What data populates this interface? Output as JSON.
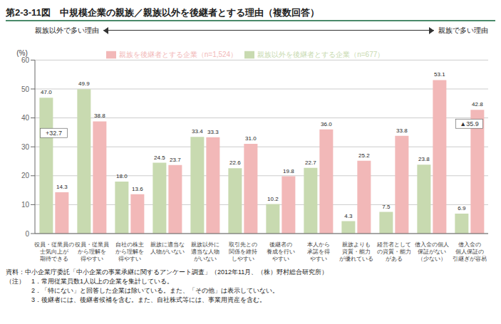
{
  "chart_data": {
    "type": "bar",
    "title": "第2-3-11図　中規模企業の親族／親族以外を後継者とする理由（複数回答）",
    "ylabel": "(%)",
    "categories": [
      "役員・従業員の\n士気向上が\n期待できる",
      "役員・従業員\nから理解を\n得やすい",
      "自社の株主\nから理解を\n得やすい",
      "親族に適当な\n人物がいない",
      "親族以外に\n適当な人物\nがいない",
      "取引先との\n関係を維持\nしやすい",
      "後継者の\n養成を行い\nやすい",
      "本人から\n承諾を得\nやすい",
      "親族よりも\n資質・能力\nが優れている",
      "経営者として\nの資質・能力\nがある",
      "借入金の個人\n保証がない\n（少ない）",
      "借入金の\n個人保証の\n引継ぎが容易"
    ],
    "series": [
      {
        "name": "親族以外を後継者とする企業（n=677）",
        "color": "#c8dab0",
        "values": [
          47.0,
          49.9,
          18.0,
          24.5,
          33.4,
          22.6,
          10.2,
          22.7,
          4.3,
          7.5,
          23.8,
          6.9
        ],
        "value_labels": [
          "47.0",
          "49.9",
          "18.0",
          "24.5",
          "33.4",
          "22.6",
          "10.2",
          "22.7",
          "4.3",
          "7.5",
          "23.8",
          "6.9"
        ]
      },
      {
        "name": "親族を後継者とする企業（n=1,524）",
        "color": "#f2b8b8",
        "values": [
          14.3,
          38.8,
          13.6,
          23.7,
          33.3,
          31.0,
          19.8,
          36.0,
          25.2,
          33.8,
          53.1,
          42.8
        ],
        "value_labels": [
          "14.3",
          "38.8",
          "13.6",
          "23.7",
          "33.3",
          "31.0",
          "19.8",
          "36.0",
          "25.2",
          "33.8",
          "53.1",
          "42.8"
        ]
      }
    ],
    "ylim": [
      0,
      60
    ],
    "yticks": [
      0,
      10,
      20,
      30,
      40,
      50,
      60
    ],
    "grid": true,
    "legend": "top",
    "data_labels": true,
    "annotations": [
      {
        "text": "+32.7",
        "x": "役員・従業員の\n士気向上が\n期待できる",
        "y": 32.7
      },
      {
        "text": "▲35.9",
        "x": "借入金の\n個人保証の\n引継ぎが容易",
        "y": 35.9
      }
    ],
    "arrow_labels": [
      "親族以外で多い理由",
      "親族で多い理由"
    ],
    "notes": [
      "資料：中小企業庁委託「中小企業の事業承継に関するアンケート調査」（2012年11月、（株）野村総合研究所）",
      "（注）　1．常用従業員数1人以上の企業を集計している。",
      "　　　　2．「特にない」と回答した企業は除いている。また、「その他」は表示していない。",
      "　　　　3．後継者には、後継者候補を含む。また、自社株式等には、事業用資産を含む。"
    ]
  }
}
